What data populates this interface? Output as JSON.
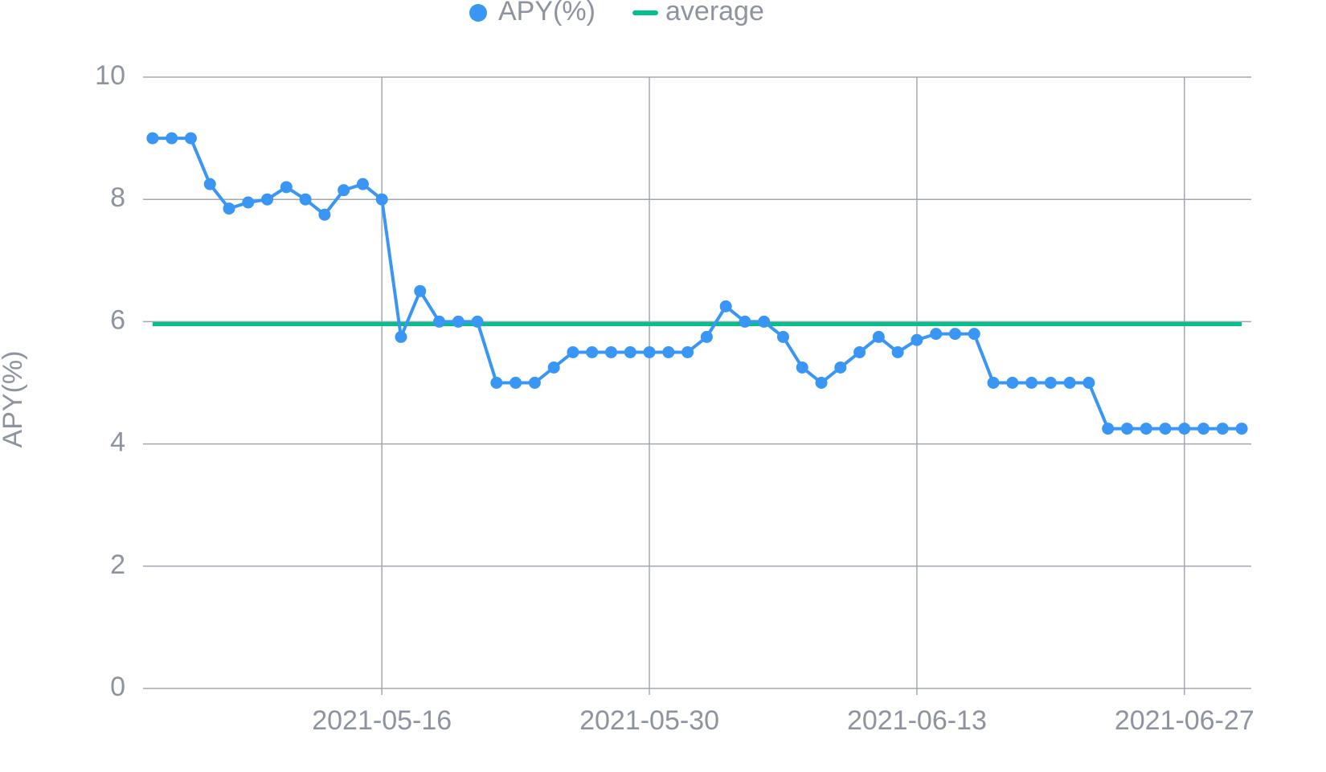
{
  "chart_data": {
    "type": "line",
    "ylabel": "APY(%)",
    "categories": [
      null,
      null,
      null,
      null,
      null,
      null,
      null,
      null,
      null,
      null,
      null,
      null,
      "2021-05-16",
      null,
      null,
      null,
      null,
      null,
      null,
      null,
      null,
      null,
      null,
      null,
      null,
      null,
      "2021-05-30",
      null,
      null,
      null,
      null,
      null,
      null,
      null,
      null,
      null,
      null,
      null,
      null,
      null,
      "2021-06-13",
      null,
      null,
      null,
      null,
      null,
      null,
      null,
      null,
      null,
      null,
      null,
      null,
      null,
      "2021-06-27",
      null,
      null,
      null
    ],
    "series": [
      {
        "name": "APY(%)",
        "color": "#3a96f5",
        "values": [
          9,
          9,
          9,
          8.25,
          7.85,
          7.95,
          8,
          8.2,
          8,
          7.75,
          8.15,
          8.25,
          8,
          5.75,
          6.5,
          6,
          6,
          6,
          5,
          5,
          5,
          5.25,
          5.5,
          5.5,
          5.5,
          5.5,
          5.5,
          5.5,
          5.5,
          5.75,
          6.25,
          6,
          6,
          5.75,
          5.25,
          5,
          5.25,
          5.5,
          5.75,
          5.5,
          5.7,
          5.8,
          5.8,
          5.8,
          5,
          5,
          5,
          5,
          5,
          5,
          4.25,
          4.25,
          4.25,
          4.25,
          4.25,
          4.25,
          4.25,
          4.25
        ]
      }
    ],
    "average": {
      "name": "average",
      "color": "#00c08b",
      "value": 5.96
    },
    "ylim": [
      0,
      10
    ],
    "yticks": [
      0,
      2,
      4,
      6,
      8,
      10
    ],
    "grid": true
  }
}
